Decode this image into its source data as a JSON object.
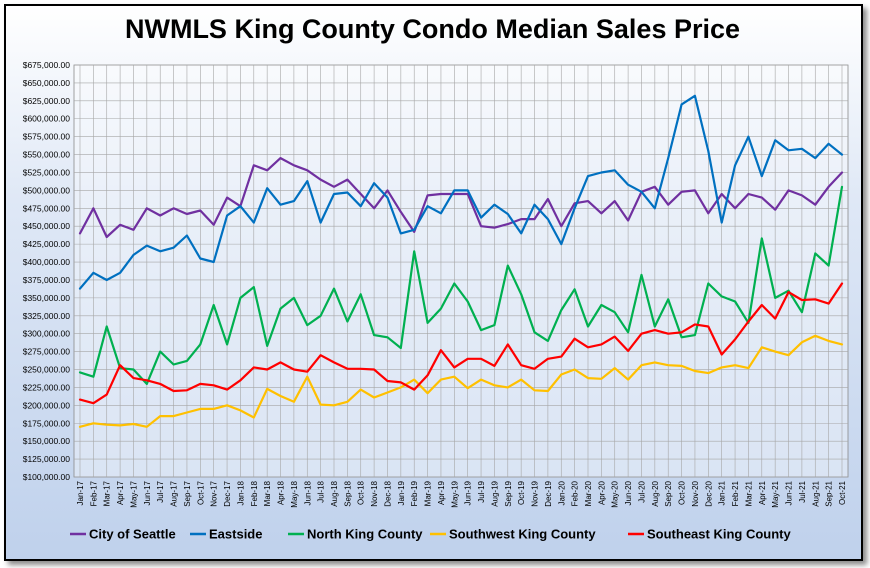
{
  "chart_data": {
    "type": "line",
    "title": "NWMLS King County Condo Median Sales Price",
    "xlabel": "",
    "ylabel": "",
    "ylim": [
      100000,
      675000
    ],
    "ytick_step": 25000,
    "ytick_labels": [
      "$100,000.00",
      "$125,000.00",
      "$150,000.00",
      "$175,000.00",
      "$200,000.00",
      "$225,000.00",
      "$250,000.00",
      "$275,000.00",
      "$300,000.00",
      "$325,000.00",
      "$350,000.00",
      "$375,000.00",
      "$400,000.00",
      "$425,000.00",
      "$450,000.00",
      "$475,000.00",
      "$500,000.00",
      "$525,000.00",
      "$550,000.00",
      "$575,000.00",
      "$600,000.00",
      "$625,000.00",
      "$650,000.00",
      "$675,000.00"
    ],
    "grid": true,
    "legend_position": "bottom",
    "categories": [
      "Jan-17",
      "Feb-17",
      "Mar-17",
      "Apr-17",
      "May-17",
      "Jun-17",
      "Jul-17",
      "Aug-17",
      "Sep-17",
      "Oct-17",
      "Nov-17",
      "Dec-17",
      "Jan-18",
      "Feb-18",
      "Mar-18",
      "Apr-18",
      "May-18",
      "Jun-18",
      "Jul-18",
      "Aug-18",
      "Sep-18",
      "Oct-18",
      "Nov-18",
      "Dec-18",
      "Jan-19",
      "Feb-19",
      "Mar-19",
      "Apr-19",
      "May-19",
      "Jun-19",
      "Jul-19",
      "Aug-19",
      "Sep-19",
      "Oct-19",
      "Nov-19",
      "Dec-19",
      "Jan-20",
      "Feb-20",
      "Mar-20",
      "Apr-20",
      "May-20",
      "Jun-20",
      "Jul-20",
      "Aug-20",
      "Sep-20",
      "Oct-20",
      "Nov-20",
      "Dec-20",
      "Jan-21",
      "Feb-21",
      "Mar-21",
      "Apr-21",
      "May-21",
      "Jun-21",
      "Jul-21",
      "Aug-21",
      "Sep-21",
      "Oct-21"
    ],
    "series": [
      {
        "name": "City of Seattle",
        "color": "#7030a0",
        "values": [
          440000,
          475000,
          435000,
          452000,
          445000,
          475000,
          465000,
          475000,
          467000,
          472000,
          452000,
          490000,
          478000,
          535000,
          528000,
          545000,
          535000,
          528000,
          515000,
          505000,
          515000,
          495000,
          475000,
          500000,
          470000,
          442000,
          493000,
          495000,
          495000,
          495000,
          450000,
          448000,
          453000,
          460000,
          460000,
          488000,
          450000,
          482000,
          485000,
          468000,
          485000,
          458000,
          498000,
          505000,
          480000,
          498000,
          500000,
          468000,
          495000,
          475000,
          495000,
          490000,
          473000,
          500000,
          493000,
          480000,
          505000,
          525000
        ]
      },
      {
        "name": "Eastside",
        "color": "#0070c0",
        "values": [
          363000,
          385000,
          375000,
          385000,
          410000,
          423000,
          415000,
          420000,
          437000,
          405000,
          400000,
          465000,
          478000,
          455000,
          503000,
          480000,
          485000,
          513000,
          455000,
          495000,
          497000,
          478000,
          510000,
          490000,
          440000,
          445000,
          478000,
          468000,
          500000,
          500000,
          462000,
          480000,
          467000,
          440000,
          480000,
          460000,
          425000,
          475000,
          520000,
          525000,
          528000,
          508000,
          498000,
          475000,
          545000,
          620000,
          632000,
          555000,
          455000,
          535000,
          575000,
          520000,
          570000,
          556000,
          558000,
          545000,
          565000,
          550000
        ]
      },
      {
        "name": "North King County",
        "color": "#00b050",
        "values": [
          246000,
          240000,
          310000,
          252000,
          250000,
          230000,
          275000,
          257000,
          262000,
          285000,
          340000,
          285000,
          350000,
          365000,
          283000,
          335000,
          350000,
          312000,
          325000,
          363000,
          317000,
          355000,
          298000,
          295000,
          280000,
          415000,
          315000,
          335000,
          370000,
          345000,
          305000,
          312000,
          395000,
          355000,
          302000,
          290000,
          333000,
          362000,
          310000,
          340000,
          330000,
          302000,
          382000,
          310000,
          348000,
          295000,
          298000,
          370000,
          352000,
          345000,
          315000,
          433000,
          350000,
          360000,
          330000,
          412000,
          395000,
          505000
        ]
      },
      {
        "name": "Southwest King County",
        "color": "#ffc000",
        "values": [
          170000,
          175000,
          173000,
          172000,
          174000,
          170000,
          185000,
          185000,
          190000,
          195000,
          195000,
          200000,
          193000,
          183000,
          223000,
          213000,
          205000,
          240000,
          201000,
          200000,
          205000,
          222000,
          211000,
          218000,
          225000,
          236000,
          217000,
          236000,
          240000,
          224000,
          236000,
          228000,
          225000,
          236000,
          221000,
          220000,
          243000,
          250000,
          238000,
          237000,
          252000,
          236000,
          256000,
          260000,
          256000,
          255000,
          248000,
          245000,
          253000,
          256000,
          252000,
          281000,
          275000,
          270000,
          288000,
          297000,
          290000,
          285000
        ]
      },
      {
        "name": "Southeast King County",
        "color": "#ff0000",
        "values": [
          208000,
          203000,
          215000,
          256000,
          238000,
          235000,
          230000,
          220000,
          221000,
          230000,
          228000,
          222000,
          235000,
          253000,
          250000,
          260000,
          250000,
          247000,
          270000,
          260000,
          251000,
          251000,
          250000,
          234000,
          232000,
          222000,
          242000,
          277000,
          253000,
          265000,
          265000,
          255000,
          285000,
          256000,
          251000,
          265000,
          268000,
          293000,
          281000,
          285000,
          296000,
          276000,
          300000,
          305000,
          300000,
          302000,
          313000,
          310000,
          271000,
          292000,
          317000,
          340000,
          321000,
          358000,
          347000,
          348000,
          342000,
          370000
        ]
      }
    ]
  }
}
